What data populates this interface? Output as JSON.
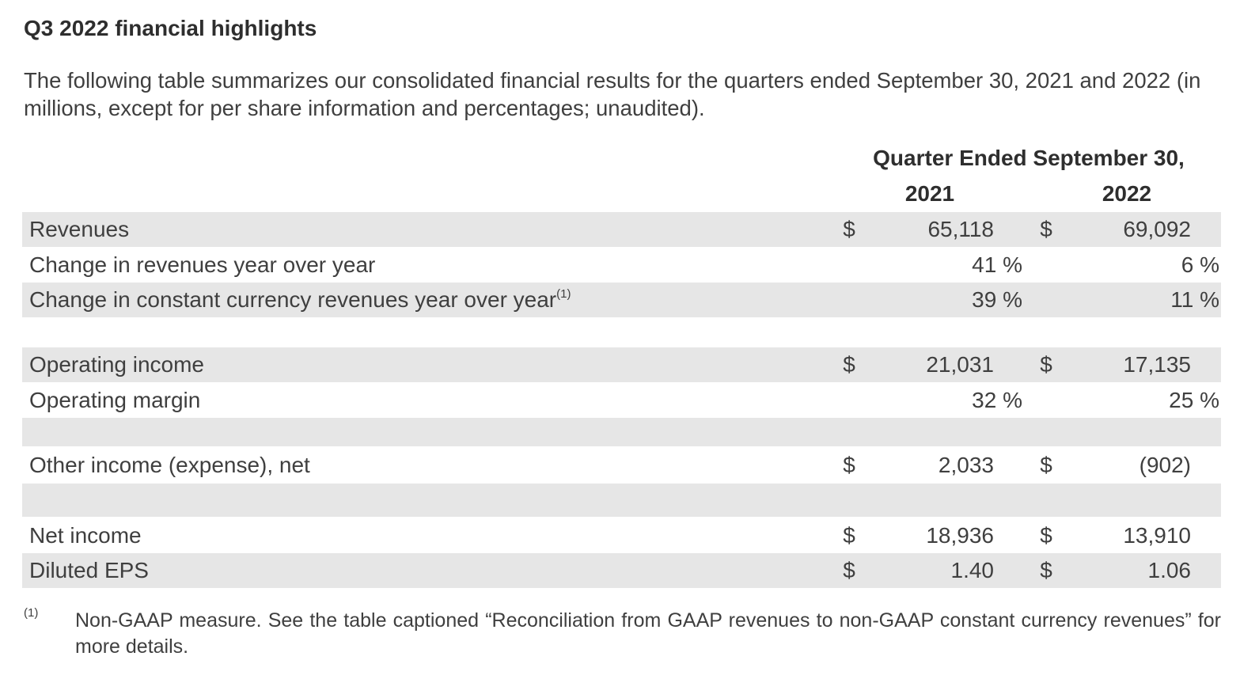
{
  "title": "Q3 2022 financial highlights",
  "intro": "The following table summarizes our consolidated financial results for the quarters ended September 30, 2021 and 2022 (in millions, except for per share information and percentages; unaudited).",
  "table": {
    "column_group": "Quarter Ended September 30,",
    "years": [
      "2021",
      "2022"
    ],
    "rows": [
      {
        "label": "Revenues",
        "c2021_dollar": "$",
        "c2021": "65,118",
        "c2022_dollar": "$",
        "c2022": "69,092"
      },
      {
        "label": "Change in revenues year over year",
        "c2021_pct": "41 %",
        "c2022_pct": "6 %"
      },
      {
        "label": "Change in constant currency revenues year over year",
        "note": "(1)",
        "c2021_pct": "39 %",
        "c2022_pct": "11 %"
      },
      {
        "label": "Operating income",
        "c2021_dollar": "$",
        "c2021": "21,031",
        "c2022_dollar": "$",
        "c2022": "17,135"
      },
      {
        "label": "Operating margin",
        "c2021_pct": "32 %",
        "c2022_pct": "25 %"
      },
      {
        "label": "Other income (expense), net",
        "c2021_dollar": "$",
        "c2021": "2,033",
        "c2022_dollar": "$",
        "c2022": "(902)"
      },
      {
        "label": "Net income",
        "c2021_dollar": "$",
        "c2021": "18,936",
        "c2022_dollar": "$",
        "c2022": "13,910"
      },
      {
        "label": "Diluted EPS",
        "c2021_dollar": "$",
        "c2021": "1.40",
        "c2022_dollar": "$",
        "c2022": "1.06"
      }
    ]
  },
  "footnote": {
    "mark": "(1)",
    "text": "Non-GAAP measure. See the table captioned “Reconciliation from GAAP revenues to non-GAAP constant currency revenues” for more details."
  }
}
